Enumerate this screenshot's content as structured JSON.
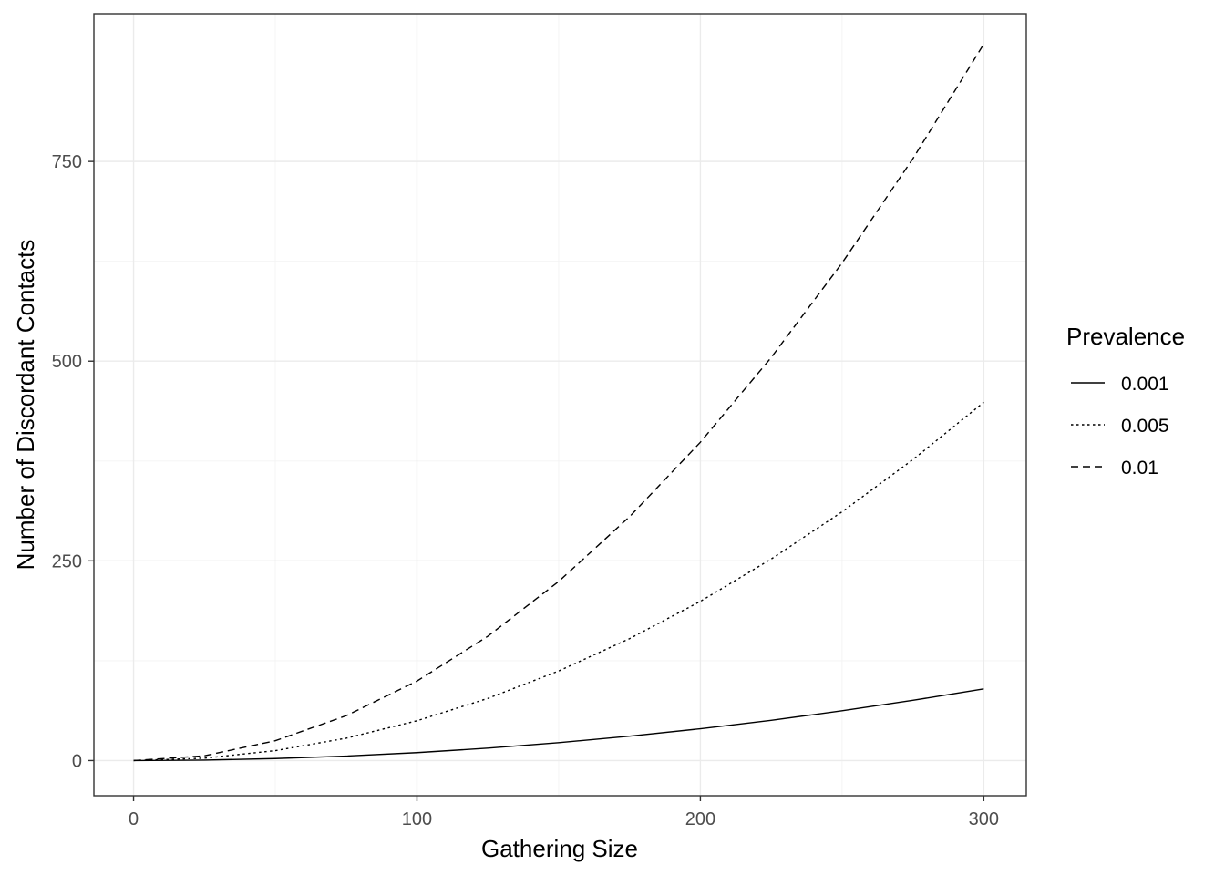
{
  "chart_data": {
    "type": "line",
    "xlabel": "Gathering Size",
    "ylabel": "Number of Discordant Contacts",
    "xlim": [
      -14,
      315
    ],
    "ylim": [
      -44,
      935
    ],
    "x_ticks": [
      0,
      100,
      200,
      300
    ],
    "y_ticks": [
      0,
      250,
      500,
      750
    ],
    "x_minor": [
      50,
      150,
      250
    ],
    "y_minor": [
      125,
      375,
      625
    ],
    "grid": true,
    "legend": {
      "title": "Prevalence",
      "position": "right"
    },
    "series": [
      {
        "name": "0.001",
        "linetype": "solid",
        "x": [
          0,
          25,
          50,
          75,
          100,
          125,
          150,
          175,
          200,
          225,
          250,
          275,
          300
        ],
        "y": [
          0,
          0.6,
          2.5,
          5.6,
          9.9,
          15.5,
          22.4,
          30.5,
          39.8,
          50.4,
          62.3,
          75.4,
          89.7
        ]
      },
      {
        "name": "0.005",
        "linetype": "dotted",
        "x": [
          0,
          25,
          50,
          75,
          100,
          125,
          150,
          175,
          200,
          225,
          250,
          275,
          300
        ],
        "y": [
          0,
          3.0,
          12.4,
          28.0,
          49.8,
          77.8,
          112.1,
          152.6,
          199.3,
          252.3,
          311.4,
          376.8,
          448.5
        ]
      },
      {
        "name": "0.01",
        "linetype": "dashed",
        "x": [
          0,
          25,
          50,
          75,
          100,
          125,
          150,
          175,
          200,
          225,
          250,
          275,
          300
        ],
        "y": [
          0,
          6.0,
          24.8,
          56.1,
          99.5,
          155.6,
          224.2,
          305.2,
          398.5,
          504.6,
          622.9,
          753.6,
          897.0
        ]
      }
    ]
  }
}
